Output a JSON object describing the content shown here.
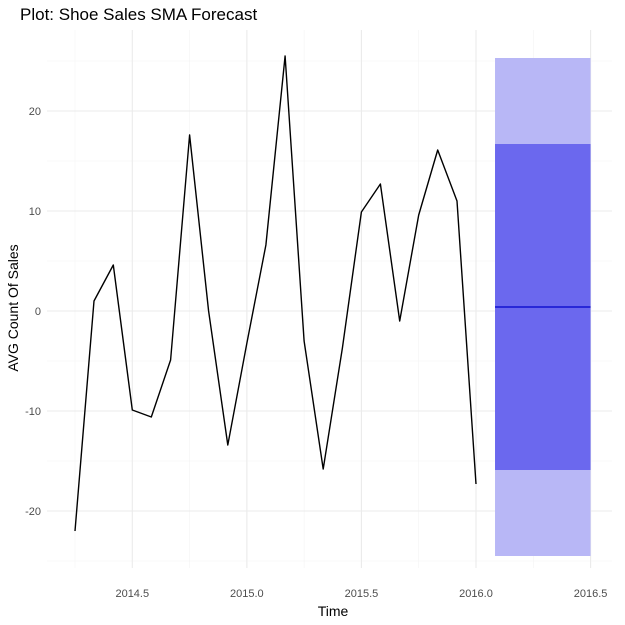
{
  "chart_data": {
    "type": "line",
    "title": "Plot: Shoe Sales SMA Forecast",
    "xlabel": "Time",
    "ylabel": "AVG Count Of Sales",
    "xlim": [
      2014.2,
      2016.55
    ],
    "ylim": [
      -25,
      25.5
    ],
    "xticks": [
      2014.5,
      2015.0,
      2015.5,
      2016.0,
      2016.5
    ],
    "xtick_labels": [
      "2014.5",
      "2015.0",
      "2015.5",
      "2016.0",
      "2016.5"
    ],
    "yticks": [
      -20,
      -10,
      0,
      10,
      20
    ],
    "ytick_labels": [
      "-20",
      "-10",
      "0",
      "10",
      "20"
    ],
    "grid": true,
    "series": [
      {
        "color": "#000000",
        "x": [
          2014.25,
          2014.333,
          2014.417,
          2014.5,
          2014.583,
          2014.667,
          2014.75,
          2014.833,
          2014.917,
          2015.0,
          2015.083,
          2015.167,
          2015.25,
          2015.333,
          2015.417,
          2015.5,
          2015.583,
          2015.667,
          2015.75,
          2015.833,
          2015.917,
          2016.0
        ],
        "values": [
          -22.0,
          1.0,
          4.6,
          -9.9,
          -10.6,
          -4.9,
          17.6,
          0.0,
          -13.4,
          -3.2,
          6.6,
          25.5,
          -3.0,
          -15.8,
          -3.7,
          9.9,
          12.7,
          -1.0,
          9.6,
          16.1,
          11.0,
          -17.3
        ]
      }
    ],
    "forecast": {
      "x_start": 2016.083,
      "x_end": 2016.5,
      "mean": 0.4,
      "band_80": [
        -15.9,
        16.7
      ],
      "band_95": [
        -24.5,
        25.3
      ],
      "mean_color": "#0000cc",
      "band_80_color": "#6b68ee",
      "band_95_color": "#b8b7f6"
    }
  }
}
